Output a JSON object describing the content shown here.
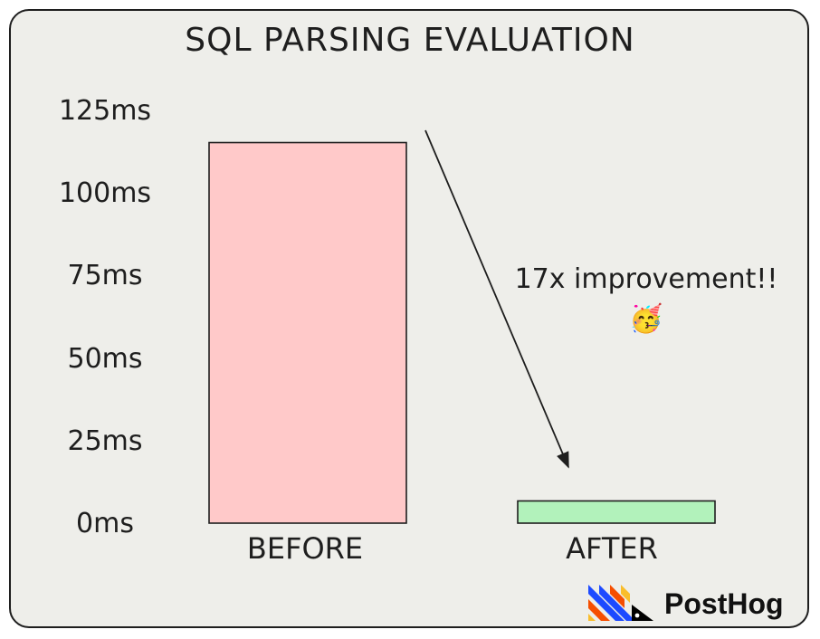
{
  "chart_data": {
    "type": "bar",
    "title": "SQL PARSING EVALUATION",
    "categories": [
      "BEFORE",
      "AFTER"
    ],
    "values": [
      120,
      7
    ],
    "ylim": [
      0,
      125
    ],
    "y_unit": "ms",
    "y_ticks": [
      "0ms",
      "25ms",
      "50ms",
      "75ms",
      "100ms",
      "125ms"
    ],
    "colors": [
      "#ffc9c9",
      "#b2f2bb"
    ],
    "grid": false,
    "annotation": "17x improvement!!"
  },
  "logo": {
    "brand": "PostHog",
    "colors": [
      "#1d4aff",
      "#f54e00",
      "#f9bd2b",
      "#000000"
    ]
  },
  "emoji": "🥳"
}
